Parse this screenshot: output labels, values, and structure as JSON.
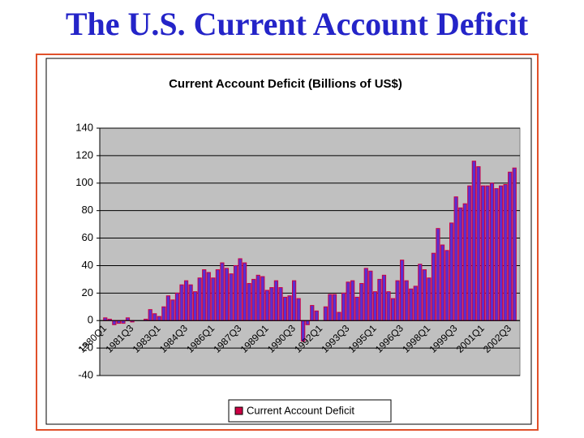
{
  "slide_title": "The U.S. Current Account Deficit",
  "chart_data": {
    "type": "bar",
    "title": "Current Account Deficit (Billions of US$)",
    "categories": [
      "1980Q1",
      null,
      null,
      null,
      null,
      null,
      "1981Q3",
      null,
      null,
      null,
      null,
      null,
      "1983Q1",
      null,
      null,
      null,
      null,
      null,
      "1984Q3",
      null,
      null,
      null,
      null,
      null,
      "1986Q1",
      null,
      null,
      null,
      null,
      null,
      "1987Q3",
      null,
      null,
      null,
      null,
      null,
      "1989Q1",
      null,
      null,
      null,
      null,
      null,
      "1990Q3",
      null,
      null,
      null,
      null,
      null,
      "1992Q1",
      null,
      null,
      null,
      null,
      null,
      "1993Q3",
      null,
      null,
      null,
      null,
      null,
      "1995Q1",
      null,
      null,
      null,
      null,
      null,
      "1996Q3",
      null,
      null,
      null,
      null,
      null,
      "1998Q1",
      null,
      null,
      null,
      null,
      null,
      "1999Q3",
      null,
      null,
      null,
      null,
      null,
      "2001Q1",
      null,
      null,
      null,
      null,
      null,
      "2002Q3",
      null
    ],
    "series": [
      {
        "name": "Current Account Deficit",
        "color": "#5a2fd0",
        "edge_color": "#cc0044",
        "values": [
          2,
          1,
          -3,
          -2,
          -2,
          2,
          -1,
          0,
          0,
          1,
          8,
          5,
          3,
          10,
          18,
          15,
          20,
          26,
          29,
          26,
          21,
          31,
          37,
          35,
          31,
          37,
          42,
          38,
          34,
          40,
          45,
          42,
          27,
          30,
          33,
          32,
          22,
          24,
          29,
          24,
          17,
          18,
          29,
          16,
          -15,
          -3,
          11,
          7,
          0,
          10,
          19,
          19,
          6,
          20,
          28,
          29,
          17,
          27,
          38,
          36,
          21,
          30,
          33,
          21,
          16,
          29,
          44,
          29,
          23,
          25,
          41,
          37,
          31,
          49,
          67,
          55,
          51,
          71,
          90,
          82,
          85,
          98,
          116,
          112,
          98,
          98,
          100,
          96,
          98,
          99,
          108,
          111
        ]
      }
    ],
    "ylim": [
      -40,
      140
    ],
    "yticks": [
      -40,
      -20,
      0,
      20,
      40,
      60,
      80,
      100,
      120,
      140
    ],
    "grid": true,
    "plot_color": "#c0c0c0",
    "legend": "bottom"
  }
}
